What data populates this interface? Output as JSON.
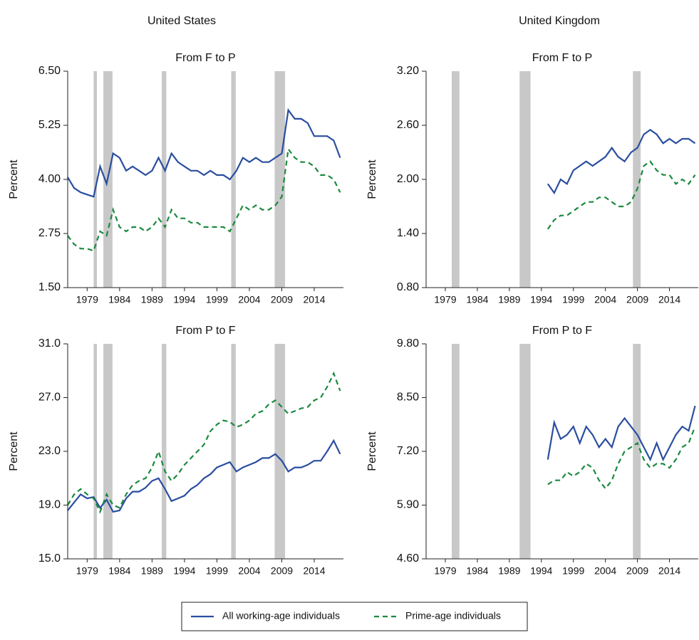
{
  "chart_data": [
    {
      "type": "line",
      "country": "United States",
      "title": "From F to P",
      "ylabel": "Percent",
      "xlim": [
        1976,
        2018.5
      ],
      "xticks": [
        1979,
        1984,
        1989,
        1994,
        1999,
        2004,
        2009,
        2014
      ],
      "ylim": [
        1.5,
        6.5
      ],
      "yticks": [
        {
          "value": 1.5,
          "label": "1.50"
        },
        {
          "value": 2.75,
          "label": "2.75"
        },
        {
          "value": 4,
          "label": "4.00"
        },
        {
          "value": 5.25,
          "label": "5.25"
        },
        {
          "value": 6.5,
          "label": "6.50"
        }
      ],
      "shading": [
        [
          1980,
          1980.5
        ],
        [
          1981.5,
          1982.9
        ],
        [
          1990.5,
          1991.2
        ],
        [
          2001.2,
          2001.9
        ],
        [
          2007.9,
          2009.5
        ]
      ],
      "shading_color": "#c8c8c8",
      "x": [
        1976,
        1977,
        1978,
        1979,
        1980,
        1981,
        1982,
        1983,
        1984,
        1985,
        1986,
        1987,
        1988,
        1989,
        1990,
        1991,
        1992,
        1993,
        1994,
        1995,
        1996,
        1997,
        1998,
        1999,
        2000,
        2001,
        2002,
        2003,
        2004,
        2005,
        2006,
        2007,
        2008,
        2009,
        2010,
        2011,
        2012,
        2013,
        2014,
        2015,
        2016,
        2017,
        2018
      ],
      "series": [
        {
          "name": "All working-age individuals",
          "color": "#2a4ea0",
          "linestyle": "solid",
          "values": [
            4.05,
            3.8,
            3.7,
            3.65,
            3.6,
            4.3,
            3.9,
            4.6,
            4.5,
            4.2,
            4.3,
            4.2,
            4.1,
            4.2,
            4.5,
            4.2,
            4.6,
            4.4,
            4.3,
            4.2,
            4.2,
            4.1,
            4.2,
            4.1,
            4.1,
            4.0,
            4.2,
            4.5,
            4.4,
            4.5,
            4.4,
            4.4,
            4.5,
            4.6,
            5.6,
            5.4,
            5.4,
            5.3,
            5.0,
            5.0,
            5.0,
            4.9,
            4.5
          ]
        },
        {
          "name": "Prime-age individuals",
          "color": "#1b8a3f",
          "linestyle": "dashed",
          "values": [
            2.7,
            2.5,
            2.4,
            2.4,
            2.35,
            2.8,
            2.7,
            3.3,
            2.9,
            2.8,
            2.9,
            2.9,
            2.8,
            2.9,
            3.1,
            2.9,
            3.3,
            3.1,
            3.1,
            3.0,
            3.0,
            2.9,
            2.9,
            2.9,
            2.9,
            2.8,
            3.1,
            3.4,
            3.3,
            3.4,
            3.3,
            3.3,
            3.4,
            3.6,
            4.7,
            4.5,
            4.4,
            4.4,
            4.3,
            4.1,
            4.1,
            4.0,
            3.7
          ]
        }
      ]
    },
    {
      "type": "line",
      "country": "United Kingdom",
      "title": "From F to P",
      "ylabel": "Percent",
      "xlim": [
        1976,
        2018.5
      ],
      "xticks": [
        1979,
        1984,
        1989,
        1994,
        1999,
        2004,
        2009,
        2014
      ],
      "ylim": [
        0.8,
        3.2
      ],
      "yticks": [
        {
          "value": 0.8,
          "label": "0.80"
        },
        {
          "value": 1.4,
          "label": "1.40"
        },
        {
          "value": 2,
          "label": "2.00"
        },
        {
          "value": 2.6,
          "label": "2.60"
        },
        {
          "value": 3.2,
          "label": "3.20"
        }
      ],
      "shading": [
        [
          1980,
          1981.2
        ],
        [
          1990.6,
          1992.3
        ],
        [
          2008.3,
          2009.5
        ]
      ],
      "shading_color": "#c8c8c8",
      "x": [
        1995,
        1996,
        1997,
        1998,
        1999,
        2000,
        2001,
        2002,
        2003,
        2004,
        2005,
        2006,
        2007,
        2008,
        2009,
        2010,
        2011,
        2012,
        2013,
        2014,
        2015,
        2016,
        2017,
        2018
      ],
      "series": [
        {
          "color": "#2a4ea0",
          "linestyle": "solid",
          "values": [
            1.95,
            1.85,
            2.0,
            1.95,
            2.1,
            2.15,
            2.2,
            2.15,
            2.2,
            2.25,
            2.35,
            2.25,
            2.2,
            2.3,
            2.35,
            2.5,
            2.55,
            2.5,
            2.4,
            2.45,
            2.4,
            2.45,
            2.45,
            2.4
          ]
        },
        {
          "color": "#1b8a3f",
          "linestyle": "dashed",
          "values": [
            1.45,
            1.55,
            1.6,
            1.6,
            1.65,
            1.7,
            1.75,
            1.75,
            1.8,
            1.8,
            1.75,
            1.7,
            1.7,
            1.75,
            1.9,
            2.15,
            2.2,
            2.1,
            2.05,
            2.05,
            1.95,
            2.0,
            1.95,
            2.05
          ]
        }
      ]
    },
    {
      "type": "line",
      "title": "From P to F",
      "ylabel": "Percent",
      "xlim": [
        1976,
        2018.5
      ],
      "xticks": [
        1979,
        1984,
        1989,
        1994,
        1999,
        2004,
        2009,
        2014
      ],
      "ylim": [
        15,
        31
      ],
      "yticks": [
        {
          "value": 15,
          "label": "15.0"
        },
        {
          "value": 19,
          "label": "19.0"
        },
        {
          "value": 23,
          "label": "23.0"
        },
        {
          "value": 27,
          "label": "27.0"
        },
        {
          "value": 31,
          "label": "31.0"
        }
      ],
      "shading": [
        [
          1980,
          1980.5
        ],
        [
          1981.5,
          1982.9
        ],
        [
          1990.5,
          1991.2
        ],
        [
          2001.2,
          2001.9
        ],
        [
          2007.9,
          2009.5
        ]
      ],
      "shading_color": "#c8c8c8",
      "x": [
        1976,
        1977,
        1978,
        1979,
        1980,
        1981,
        1982,
        1983,
        1984,
        1985,
        1986,
        1987,
        1988,
        1989,
        1990,
        1991,
        1992,
        1993,
        1994,
        1995,
        1996,
        1997,
        1998,
        1999,
        2000,
        2001,
        2002,
        2003,
        2004,
        2005,
        2006,
        2007,
        2008,
        2009,
        2010,
        2011,
        2012,
        2013,
        2014,
        2015,
        2016,
        2017,
        2018
      ],
      "series": [
        {
          "color": "#2a4ea0",
          "linestyle": "solid",
          "values": [
            18.6,
            19.2,
            19.8,
            19.5,
            19.6,
            18.8,
            19.4,
            18.5,
            18.6,
            19.5,
            20.0,
            20.0,
            20.3,
            20.8,
            21.0,
            20.2,
            19.3,
            19.5,
            19.7,
            20.2,
            20.5,
            21.0,
            21.3,
            21.8,
            22.0,
            22.2,
            21.5,
            21.8,
            22.0,
            22.2,
            22.5,
            22.5,
            22.8,
            22.3,
            21.5,
            21.8,
            21.8,
            22.0,
            22.3,
            22.3,
            23.0,
            23.8,
            22.8
          ]
        },
        {
          "color": "#1b8a3f",
          "linestyle": "dashed",
          "values": [
            19.0,
            19.8,
            20.2,
            19.8,
            19.5,
            18.5,
            19.8,
            19.0,
            18.8,
            19.8,
            20.5,
            20.8,
            21.0,
            21.8,
            23.0,
            21.5,
            20.8,
            21.3,
            22.0,
            22.5,
            23.0,
            23.5,
            24.5,
            25.0,
            25.3,
            25.2,
            24.8,
            25.0,
            25.3,
            25.8,
            26.0,
            26.5,
            26.8,
            26.3,
            25.8,
            26.0,
            26.2,
            26.3,
            26.8,
            27.0,
            27.8,
            28.8,
            27.5
          ]
        }
      ]
    },
    {
      "type": "line",
      "title": "From P to F",
      "ylabel": "Percent",
      "xlim": [
        1976,
        2018.5
      ],
      "xticks": [
        1979,
        1984,
        1989,
        1994,
        1999,
        2004,
        2009,
        2014
      ],
      "ylim": [
        4.6,
        9.8
      ],
      "yticks": [
        {
          "value": 4.6,
          "label": "4.60"
        },
        {
          "value": 5.9,
          "label": "5.90"
        },
        {
          "value": 7.2,
          "label": "7.20"
        },
        {
          "value": 8.5,
          "label": "8.50"
        },
        {
          "value": 9.8,
          "label": "9.80"
        }
      ],
      "shading": [
        [
          1980,
          1981.2
        ],
        [
          1990.6,
          1992.3
        ],
        [
          2008.3,
          2009.5
        ]
      ],
      "shading_color": "#c8c8c8",
      "x": [
        1995,
        1996,
        1997,
        1998,
        1999,
        2000,
        2001,
        2002,
        2003,
        2004,
        2005,
        2006,
        2007,
        2008,
        2009,
        2010,
        2011,
        2012,
        2013,
        2014,
        2015,
        2016,
        2017,
        2018
      ],
      "series": [
        {
          "color": "#2a4ea0",
          "linestyle": "solid",
          "values": [
            7.0,
            7.9,
            7.5,
            7.6,
            7.8,
            7.4,
            7.8,
            7.6,
            7.3,
            7.5,
            7.3,
            7.8,
            8.0,
            7.8,
            7.6,
            7.3,
            7.0,
            7.4,
            7.0,
            7.3,
            7.6,
            7.8,
            7.7,
            8.3
          ]
        },
        {
          "color": "#1b8a3f",
          "linestyle": "dashed",
          "values": [
            6.4,
            6.5,
            6.5,
            6.7,
            6.6,
            6.7,
            6.9,
            6.8,
            6.5,
            6.3,
            6.5,
            6.9,
            7.2,
            7.3,
            7.4,
            7.0,
            6.8,
            6.9,
            6.9,
            6.8,
            7.0,
            7.3,
            7.4,
            7.8
          ]
        }
      ]
    }
  ]
}
